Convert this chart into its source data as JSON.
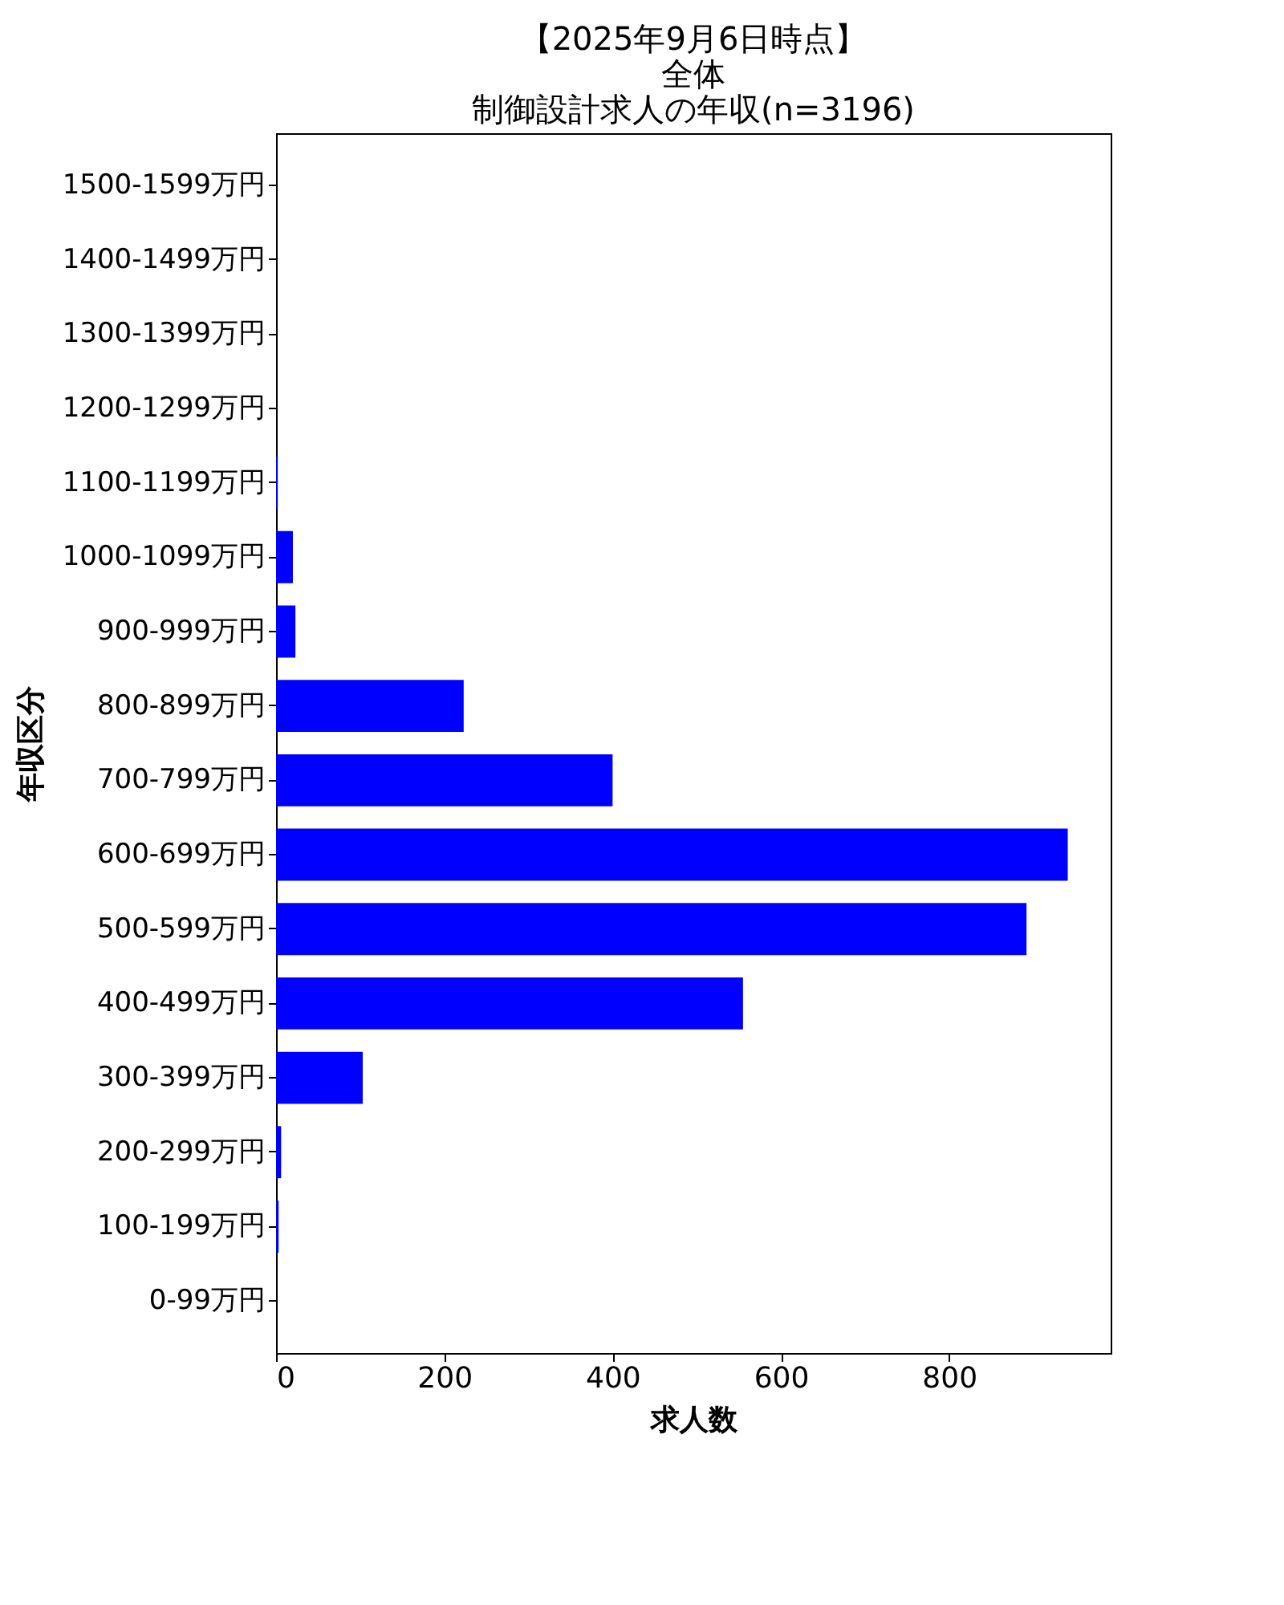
{
  "chart_data": {
    "type": "bar",
    "orientation": "horizontal",
    "title": [
      "【2025年9月6日時点】",
      "全体",
      "制御設計求人の年収(n=3196)"
    ],
    "xlabel": "求人数",
    "ylabel": "年収区分",
    "categories": [
      "1500-1599万円",
      "1400-1499万円",
      "1300-1399万円",
      "1200-1299万円",
      "1100-1199万円",
      "1000-1099万円",
      "900-999万円",
      "800-899万円",
      "700-799万円",
      "600-699万円",
      "500-599万円",
      "400-499万円",
      "300-399万円",
      "200-299万円",
      "100-199万円",
      "0-99万円"
    ],
    "values": [
      0,
      0,
      0,
      0,
      2,
      20,
      23,
      223,
      400,
      941,
      892,
      555,
      103,
      6,
      3,
      0
    ],
    "color": "#0000ff",
    "xlim": [
      0,
      992
    ],
    "xticks": [
      0,
      200,
      400,
      600,
      800
    ],
    "grid": false
  }
}
